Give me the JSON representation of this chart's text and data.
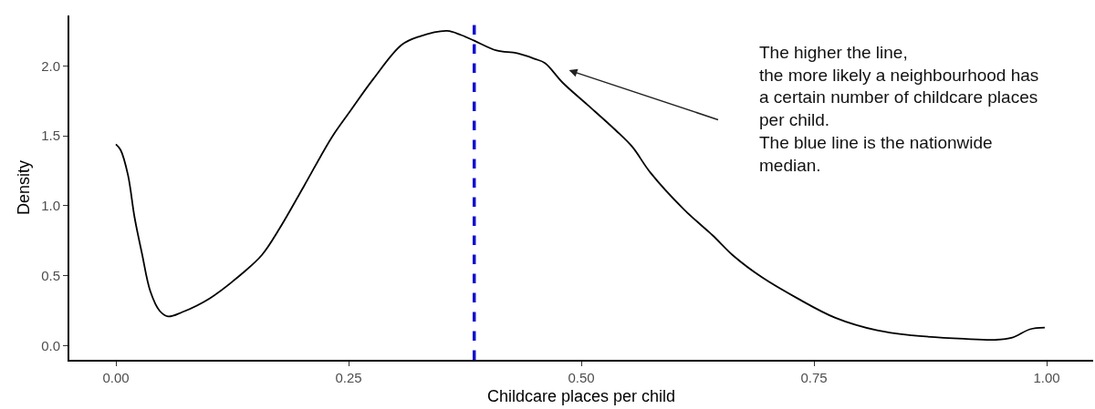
{
  "chart_data": {
    "type": "line",
    "xlabel": "Childcare places per child",
    "ylabel": "Density",
    "x": [
      0,
      0.005,
      0.013,
      0.02,
      0.028,
      0.037,
      0.047,
      0.056,
      0.071,
      0.101,
      0.138,
      0.157,
      0.176,
      0.202,
      0.232,
      0.251,
      0.277,
      0.307,
      0.326,
      0.356,
      0.371,
      0.385,
      0.409,
      0.431,
      0.45,
      0.461,
      0.48,
      0.507,
      0.537,
      0.555,
      0.574,
      0.611,
      0.641,
      0.664,
      0.694,
      0.732,
      0.773,
      0.818,
      0.855,
      0.911,
      0.945,
      0.963,
      0.982,
      0.998
    ],
    "series": [
      {
        "color": "#000000",
        "values": [
          1.44,
          1.4,
          1.22,
          0.92,
          0.66,
          0.39,
          0.25,
          0.21,
          0.24,
          0.34,
          0.53,
          0.65,
          0.84,
          1.14,
          1.49,
          1.67,
          1.91,
          2.15,
          2.21,
          2.25,
          2.22,
          2.18,
          2.11,
          2.09,
          2.05,
          2.02,
          1.88,
          1.72,
          1.54,
          1.42,
          1.24,
          0.97,
          0.79,
          0.64,
          0.49,
          0.34,
          0.2,
          0.11,
          0.075,
          0.05,
          0.043,
          0.058,
          0.118,
          0.13
        ]
      }
    ],
    "xlim": [
      -0.05,
      1.05
    ],
    "ylim": [
      -0.1,
      2.36
    ],
    "xticks": [
      {
        "value": 0,
        "label": "0.00"
      },
      {
        "value": 0.25,
        "label": "0.25"
      },
      {
        "value": 0.5,
        "label": "0.50"
      },
      {
        "value": 0.75,
        "label": "0.75"
      },
      {
        "value": 1,
        "label": "1.00"
      }
    ],
    "yticks": [
      {
        "value": 0,
        "label": "0.0"
      },
      {
        "value": 0.5,
        "label": "0.5"
      },
      {
        "value": 1,
        "label": "1.0"
      },
      {
        "value": 1.5,
        "label": "1.5"
      },
      {
        "value": 2,
        "label": "2.0"
      }
    ],
    "ref_lines": [
      {
        "axis": "x",
        "value": 0.385,
        "color": "#1010d0",
        "line_style": "dashed"
      }
    ],
    "annotations": [
      "The higher the line,\nthe more likely a neighbourhood has\na certain number of childcare places\nper child.\nThe blue line is the nationwide\nmedian."
    ],
    "marker": "none",
    "line_style": "solid"
  }
}
